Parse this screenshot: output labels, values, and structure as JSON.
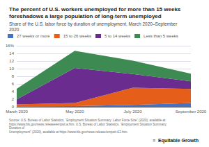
{
  "chart_data": {
    "type": "area",
    "title": "The percent of U.S. workers unemployed for more than 15 weeks\nforeshadows a large population of long-term unemployed",
    "subtitle": "Share of the U.S. labor force by duration of unemployment, March 2020–September\n2020",
    "categories": [
      "March 2020",
      "May 2020",
      "July 2020",
      "September 2020"
    ],
    "series": [
      {
        "name": "27 weeks or more",
        "color": "#4472c4",
        "values": [
          0.15,
          0.2,
          0.5,
          1.0
        ]
      },
      {
        "name": "15 to 26 weeks",
        "color": "#e55e1a",
        "values": [
          0.5,
          0.8,
          4.5,
          3.7
        ]
      },
      {
        "name": "5 to 14 weeks",
        "color": "#6a2d8f",
        "values": [
          1.3,
          9.2,
          3.6,
          2.0
        ]
      },
      {
        "name": "Less than 5 weeks",
        "color": "#3d8a52",
        "values": [
          2.8,
          4.5,
          3.5,
          2.0
        ]
      }
    ],
    "stacked": true,
    "ylim": [
      0,
      16
    ],
    "yticks": [
      0,
      2,
      4,
      6,
      8,
      10,
      12,
      14,
      {
        "value": 16,
        "label": "16%"
      }
    ],
    "grid": true,
    "legend": "top",
    "annotations": [
      "Source: U.S. Bureau of Labor Statistics, “Employment Situation Summary: Labor Force Size” (2020), available at:\nhttps://www.bls.gov/news.release/empsit.a.htm; U.S. Bureau of Labor Statistics, “Employment Situation Summary: Duration of\nUnemployment” (2020), available at https://www.bls.gov/news.release/empsit.t12.htm.",
      "≡  Equitable Growth"
    ]
  }
}
